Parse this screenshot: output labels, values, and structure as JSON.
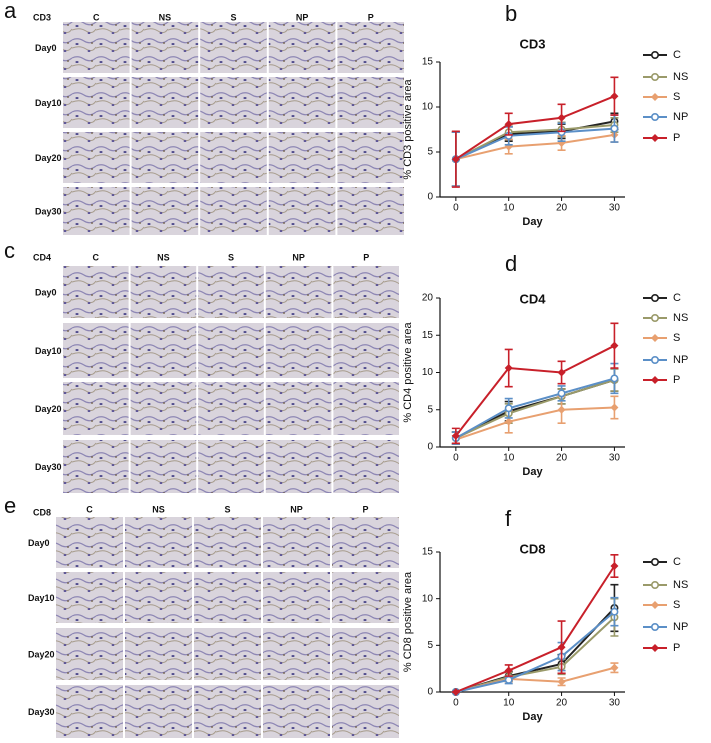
{
  "figure": {
    "panels": [
      {
        "letter": "a",
        "marker": "CD3",
        "columns": [
          "C",
          "NS",
          "S",
          "NP",
          "P"
        ],
        "rows": [
          "Day0",
          "Day10",
          "Day20",
          "Day30"
        ]
      },
      {
        "letter": "c",
        "marker": "CD4",
        "columns": [
          "C",
          "NS",
          "S",
          "NP",
          "P"
        ],
        "rows": [
          "Day0",
          "Day10",
          "Day20",
          "Day30"
        ]
      },
      {
        "letter": "e",
        "marker": "CD8",
        "columns": [
          "C",
          "NS",
          "S",
          "NP",
          "P"
        ],
        "rows": [
          "Day0",
          "Day10",
          "Day20",
          "Day30"
        ]
      }
    ]
  },
  "chart_data": [
    {
      "type": "line",
      "letter": "b",
      "title": "CD3",
      "y_label": "% CD3 positive area",
      "x_label": "Day",
      "x": [
        0,
        10,
        20,
        30
      ],
      "xlim": [
        -3,
        32
      ],
      "xticks": [
        0,
        10,
        20,
        30
      ],
      "ylim": [
        0,
        15
      ],
      "yticks": [
        0,
        5,
        10,
        15
      ],
      "series": [
        {
          "name": "C",
          "color": "#222222",
          "marker": "circle",
          "values": [
            4.2,
            7.0,
            7.3,
            8.4
          ],
          "errors": [
            3.0,
            0.8,
            0.8,
            0.9
          ]
        },
        {
          "name": "NS",
          "color": "#9a9a6a",
          "marker": "circle",
          "values": [
            4.2,
            7.2,
            7.5,
            8.0
          ],
          "errors": [
            3.0,
            0.8,
            0.8,
            0.8
          ]
        },
        {
          "name": "S",
          "color": "#e8a070",
          "marker": "diamond",
          "values": [
            4.2,
            5.6,
            6.0,
            6.9
          ],
          "errors": [
            3.0,
            0.8,
            0.8,
            0.8
          ]
        },
        {
          "name": "NP",
          "color": "#5b8fc7",
          "marker": "circle",
          "values": [
            4.2,
            6.8,
            7.2,
            7.6
          ],
          "errors": [
            3.0,
            1.0,
            1.0,
            1.5
          ]
        },
        {
          "name": "P",
          "color": "#c8202a",
          "marker": "diamond",
          "values": [
            4.2,
            8.1,
            8.8,
            11.2
          ],
          "errors": [
            3.1,
            1.2,
            1.5,
            2.1
          ]
        }
      ]
    },
    {
      "type": "line",
      "letter": "d",
      "title": "CD4",
      "y_label": "% CD4 positive area",
      "x_label": "Day",
      "x": [
        0,
        10,
        20,
        30
      ],
      "xlim": [
        -3,
        32
      ],
      "xticks": [
        0,
        10,
        20,
        30
      ],
      "ylim": [
        0,
        20
      ],
      "yticks": [
        0,
        5,
        10,
        15,
        20
      ],
      "series": [
        {
          "name": "C",
          "color": "#222222",
          "marker": "circle",
          "values": [
            1.2,
            4.8,
            6.8,
            9.0
          ],
          "errors": [
            0.8,
            1.3,
            1.0,
            1.5
          ]
        },
        {
          "name": "NS",
          "color": "#9a9a6a",
          "marker": "circle",
          "values": [
            1.2,
            4.5,
            6.8,
            9.0
          ],
          "errors": [
            0.8,
            1.3,
            1.0,
            1.5
          ]
        },
        {
          "name": "S",
          "color": "#e8a070",
          "marker": "diamond",
          "values": [
            1.0,
            3.4,
            5.0,
            5.3
          ],
          "errors": [
            0.5,
            1.5,
            1.8,
            1.5
          ]
        },
        {
          "name": "NP",
          "color": "#5b8fc7",
          "marker": "circle",
          "values": [
            1.2,
            5.2,
            7.2,
            9.2
          ],
          "errors": [
            0.8,
            1.3,
            1.0,
            2.0
          ]
        },
        {
          "name": "P",
          "color": "#c8202a",
          "marker": "diamond",
          "values": [
            1.5,
            10.6,
            10.0,
            13.6
          ],
          "errors": [
            1.0,
            2.5,
            1.5,
            3.0
          ]
        }
      ]
    },
    {
      "type": "line",
      "letter": "f",
      "title": "CD8",
      "y_label": "% CD8 positive area",
      "x_label": "Day",
      "x": [
        0,
        10,
        20,
        30
      ],
      "xlim": [
        -3,
        32
      ],
      "xticks": [
        0,
        10,
        20,
        30
      ],
      "ylim": [
        0,
        15
      ],
      "yticks": [
        0,
        5,
        10,
        15
      ],
      "series": [
        {
          "name": "C",
          "color": "#222222",
          "marker": "circle",
          "values": [
            0,
            1.7,
            3.0,
            9.0
          ],
          "errors": [
            0,
            0.5,
            1.0,
            2.5
          ]
        },
        {
          "name": "NS",
          "color": "#9a9a6a",
          "marker": "circle",
          "values": [
            0,
            1.6,
            2.7,
            8.0
          ],
          "errors": [
            0,
            0.5,
            0.8,
            2.0
          ]
        },
        {
          "name": "S",
          "color": "#e8a070",
          "marker": "diamond",
          "values": [
            0,
            1.4,
            1.1,
            2.6
          ],
          "errors": [
            0,
            0.3,
            0.4,
            0.5
          ]
        },
        {
          "name": "NP",
          "color": "#5b8fc7",
          "marker": "circle",
          "values": [
            0,
            1.3,
            3.8,
            8.6
          ],
          "errors": [
            0,
            0.4,
            1.5,
            1.5
          ]
        },
        {
          "name": "P",
          "color": "#c8202a",
          "marker": "diamond",
          "values": [
            0,
            2.3,
            4.8,
            13.5
          ],
          "errors": [
            0,
            0.6,
            2.8,
            1.2
          ]
        }
      ]
    }
  ]
}
